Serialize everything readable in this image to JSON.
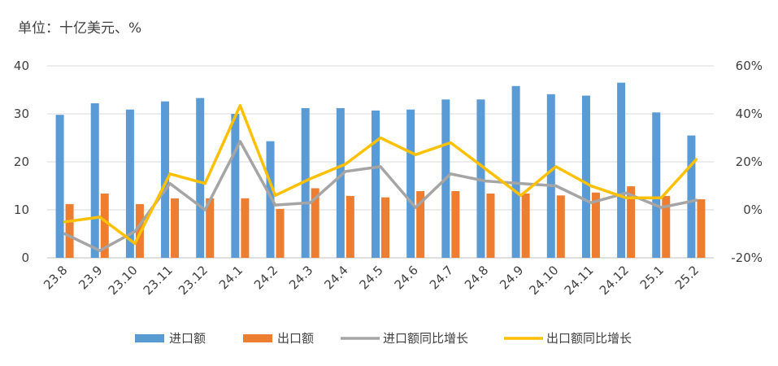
{
  "unit_label": "单位：十亿美元、%",
  "chart_data": {
    "type": "bar+line",
    "title": "",
    "categories": [
      "23.8",
      "23.9",
      "23.10",
      "23.11",
      "23.12",
      "24.1",
      "24.2",
      "24.3",
      "24.4",
      "24.5",
      "24.6",
      "24.7",
      "24.8",
      "24.9",
      "24.10",
      "24.11",
      "24.12",
      "25.1",
      "25.2"
    ],
    "left_axis": {
      "ylim": [
        0,
        40
      ],
      "ticks": [
        "0",
        "10",
        "20",
        "30",
        "40"
      ]
    },
    "right_axis": {
      "ylim": [
        -20,
        60
      ],
      "ticks": [
        "-20%",
        "0%",
        "20%",
        "40%",
        "60%"
      ]
    },
    "series": [
      {
        "name": "进口额",
        "type": "bar",
        "axis": "left",
        "color": "#5B9BD5",
        "values": [
          29.8,
          32.2,
          30.9,
          32.6,
          33.3,
          30.0,
          24.3,
          31.2,
          31.2,
          30.7,
          30.9,
          33.0,
          33.0,
          35.8,
          34.1,
          33.8,
          36.5,
          30.3,
          25.5
        ]
      },
      {
        "name": "出口额",
        "type": "bar",
        "axis": "left",
        "color": "#ED7D31",
        "values": [
          11.2,
          13.4,
          11.2,
          12.4,
          12.4,
          12.4,
          10.2,
          14.5,
          12.9,
          12.6,
          13.9,
          13.9,
          13.4,
          13.4,
          13.0,
          13.6,
          14.9,
          12.9,
          12.2
        ]
      },
      {
        "name": "进口额同比增长",
        "type": "line",
        "axis": "right",
        "color": "#A5A5A5",
        "values": [
          -10,
          -17,
          -9,
          11,
          0,
          28.5,
          2,
          3,
          16,
          18,
          1,
          15,
          12,
          11,
          10,
          3,
          7,
          1,
          4
        ]
      },
      {
        "name": "出口额同比增长",
        "type": "line",
        "axis": "right",
        "color": "#FFC000",
        "values": [
          -5,
          -3,
          -14,
          15,
          11,
          43.5,
          6,
          13,
          19,
          30,
          23,
          28,
          17,
          6,
          18,
          10,
          5,
          5,
          21
        ]
      }
    ],
    "legend_position": "bottom",
    "grid": true
  }
}
